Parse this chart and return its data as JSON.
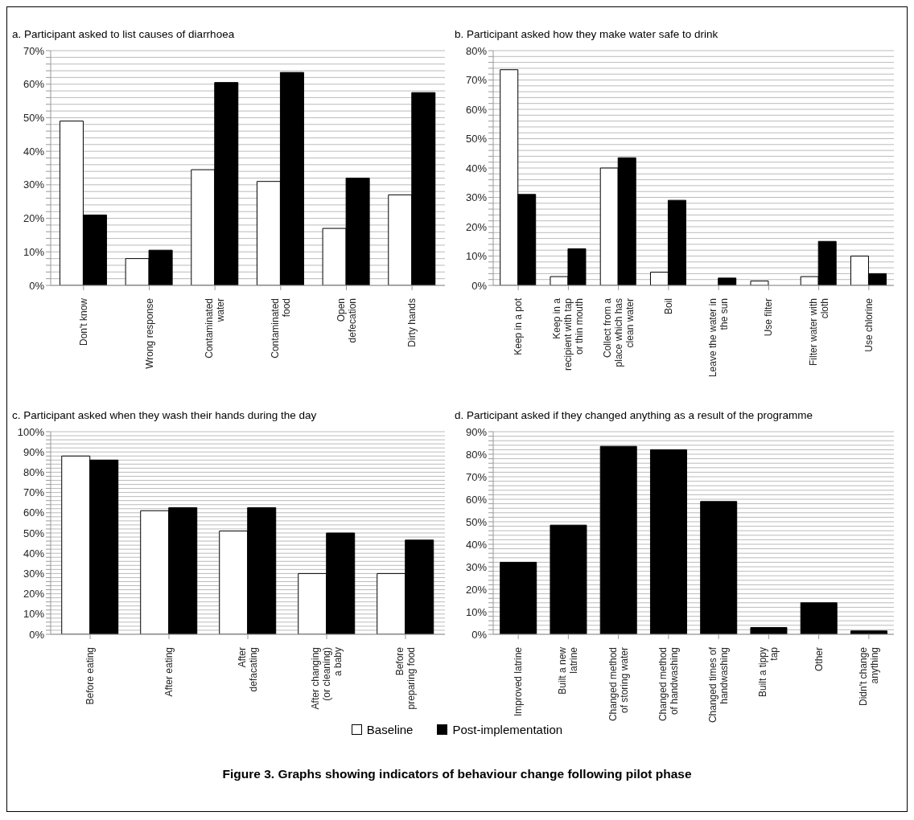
{
  "chart_data": [
    {
      "type": "bar",
      "title": "a. Participant asked to list causes of diarrhoea",
      "categories": [
        "Don't know",
        "Wrong response",
        "Contaminated water",
        "Contaminated food",
        "Open defecation",
        "Dirty hands"
      ],
      "series": [
        {
          "name": "Baseline",
          "color": "#ffffff",
          "values": [
            49,
            8,
            34.5,
            31,
            17,
            27
          ]
        },
        {
          "name": "Post-implementation",
          "color": "#000000",
          "values": [
            21,
            10.5,
            60.5,
            63.5,
            32,
            57.5
          ]
        }
      ],
      "ylim": [
        0,
        70
      ],
      "yticks": [
        {
          "value": 0,
          "label": "0%"
        },
        {
          "value": 2,
          "label": null
        },
        {
          "value": 4,
          "label": null
        },
        {
          "value": 6,
          "label": null
        },
        {
          "value": 8,
          "label": null
        },
        {
          "value": 10,
          "label": "10%"
        },
        {
          "value": 12,
          "label": null
        },
        {
          "value": 14,
          "label": null
        },
        {
          "value": 16,
          "label": null
        },
        {
          "value": 18,
          "label": null
        },
        {
          "value": 20,
          "label": "20%"
        },
        {
          "value": 22,
          "label": null
        },
        {
          "value": 24,
          "label": null
        },
        {
          "value": 26,
          "label": null
        },
        {
          "value": 28,
          "label": null
        },
        {
          "value": 30,
          "label": "30%"
        },
        {
          "value": 32,
          "label": null
        },
        {
          "value": 34,
          "label": null
        },
        {
          "value": 36,
          "label": null
        },
        {
          "value": 38,
          "label": null
        },
        {
          "value": 40,
          "label": "40%"
        },
        {
          "value": 42,
          "label": null
        },
        {
          "value": 44,
          "label": null
        },
        {
          "value": 46,
          "label": null
        },
        {
          "value": 48,
          "label": null
        },
        {
          "value": 50,
          "label": "50%"
        },
        {
          "value": 52,
          "label": null
        },
        {
          "value": 54,
          "label": null
        },
        {
          "value": 56,
          "label": null
        },
        {
          "value": 58,
          "label": null
        },
        {
          "value": 60,
          "label": "60%"
        },
        {
          "value": 62,
          "label": null
        },
        {
          "value": 64,
          "label": null
        },
        {
          "value": 66,
          "label": null
        },
        {
          "value": 68,
          "label": null
        },
        {
          "value": 70,
          "label": "70%"
        }
      ],
      "grid": "y",
      "legend": "bottom"
    },
    {
      "type": "bar",
      "title": "b. Participant asked how they make water safe to drink",
      "categories": [
        "Keep in a pot",
        "Keep in a recipient with tap or thin mouth",
        "Collect from a place which has clean water",
        "Boil",
        "Leave the water in the sun",
        "Use filter",
        "Filter water with cloth",
        "Use chlorine"
      ],
      "series": [
        {
          "color": "#ffffff",
          "values": [
            73.5,
            3,
            40,
            4.5,
            null,
            1.5,
            3,
            10
          ]
        },
        {
          "color": "#000000",
          "values": [
            31,
            12.5,
            43.5,
            29,
            2.5,
            null,
            15,
            4
          ]
        }
      ],
      "ylim": [
        0,
        80
      ],
      "yticks": [
        {
          "value": 0,
          "label": "0%"
        },
        {
          "value": 2,
          "label": null
        },
        {
          "value": 4,
          "label": null
        },
        {
          "value": 6,
          "label": null
        },
        {
          "value": 8,
          "label": null
        },
        {
          "value": 10,
          "label": "10%"
        },
        {
          "value": 12,
          "label": null
        },
        {
          "value": 14,
          "label": null
        },
        {
          "value": 16,
          "label": null
        },
        {
          "value": 18,
          "label": null
        },
        {
          "value": 20,
          "label": "20%"
        },
        {
          "value": 22,
          "label": null
        },
        {
          "value": 24,
          "label": null
        },
        {
          "value": 26,
          "label": null
        },
        {
          "value": 28,
          "label": null
        },
        {
          "value": 30,
          "label": "30%"
        },
        {
          "value": 32,
          "label": null
        },
        {
          "value": 34,
          "label": null
        },
        {
          "value": 36,
          "label": null
        },
        {
          "value": 38,
          "label": null
        },
        {
          "value": 40,
          "label": "40%"
        },
        {
          "value": 42,
          "label": null
        },
        {
          "value": 44,
          "label": null
        },
        {
          "value": 46,
          "label": null
        },
        {
          "value": 48,
          "label": null
        },
        {
          "value": 50,
          "label": "50%"
        },
        {
          "value": 52,
          "label": null
        },
        {
          "value": 54,
          "label": null
        },
        {
          "value": 56,
          "label": null
        },
        {
          "value": 58,
          "label": null
        },
        {
          "value": 60,
          "label": "60%"
        },
        {
          "value": 62,
          "label": null
        },
        {
          "value": 64,
          "label": null
        },
        {
          "value": 66,
          "label": null
        },
        {
          "value": 68,
          "label": null
        },
        {
          "value": 70,
          "label": "70%"
        },
        {
          "value": 72,
          "label": null
        },
        {
          "value": 74,
          "label": null
        },
        {
          "value": 76,
          "label": null
        },
        {
          "value": 78,
          "label": null
        },
        {
          "value": 80,
          "label": "80%"
        }
      ],
      "grid": "y"
    },
    {
      "type": "bar",
      "title": "c. Participant asked when they wash their hands during the day",
      "categories": [
        "Before eating",
        "After eating",
        "After defacating",
        "After changing (or cleaning) a baby",
        "Before preparing food"
      ],
      "series": [
        {
          "color": "#ffffff",
          "values": [
            88,
            61,
            51,
            30,
            30
          ]
        },
        {
          "color": "#000000",
          "values": [
            86,
            62.5,
            62.5,
            50,
            46.5
          ]
        }
      ],
      "ylim": [
        0,
        100
      ],
      "yticks": [
        {
          "value": 0,
          "label": "0%"
        },
        {
          "value": 2,
          "label": null
        },
        {
          "value": 4,
          "label": null
        },
        {
          "value": 6,
          "label": null
        },
        {
          "value": 8,
          "label": null
        },
        {
          "value": 10,
          "label": "10%"
        },
        {
          "value": 12,
          "label": null
        },
        {
          "value": 14,
          "label": null
        },
        {
          "value": 16,
          "label": null
        },
        {
          "value": 18,
          "label": null
        },
        {
          "value": 20,
          "label": "20%"
        },
        {
          "value": 22,
          "label": null
        },
        {
          "value": 24,
          "label": null
        },
        {
          "value": 26,
          "label": null
        },
        {
          "value": 28,
          "label": null
        },
        {
          "value": 30,
          "label": "30%"
        },
        {
          "value": 32,
          "label": null
        },
        {
          "value": 34,
          "label": null
        },
        {
          "value": 36,
          "label": null
        },
        {
          "value": 38,
          "label": null
        },
        {
          "value": 40,
          "label": "40%"
        },
        {
          "value": 42,
          "label": null
        },
        {
          "value": 44,
          "label": null
        },
        {
          "value": 46,
          "label": null
        },
        {
          "value": 48,
          "label": null
        },
        {
          "value": 50,
          "label": "50%"
        },
        {
          "value": 52,
          "label": null
        },
        {
          "value": 54,
          "label": null
        },
        {
          "value": 56,
          "label": null
        },
        {
          "value": 58,
          "label": null
        },
        {
          "value": 60,
          "label": "60%"
        },
        {
          "value": 62,
          "label": null
        },
        {
          "value": 64,
          "label": null
        },
        {
          "value": 66,
          "label": null
        },
        {
          "value": 68,
          "label": null
        },
        {
          "value": 70,
          "label": "70%"
        },
        {
          "value": 72,
          "label": null
        },
        {
          "value": 74,
          "label": null
        },
        {
          "value": 76,
          "label": null
        },
        {
          "value": 78,
          "label": null
        },
        {
          "value": 80,
          "label": "80%"
        },
        {
          "value": 82,
          "label": null
        },
        {
          "value": 84,
          "label": null
        },
        {
          "value": 86,
          "label": null
        },
        {
          "value": 88,
          "label": null
        },
        {
          "value": 90,
          "label": "90%"
        },
        {
          "value": 92,
          "label": null
        },
        {
          "value": 94,
          "label": null
        },
        {
          "value": 96,
          "label": null
        },
        {
          "value": 98,
          "label": null
        },
        {
          "value": 100,
          "label": "100%"
        }
      ],
      "grid": "y"
    },
    {
      "type": "bar",
      "title": "d. Participant asked if they changed anything as a result of the programme",
      "categories": [
        "Improved latrine",
        "Built a new latrine",
        "Changed method of storing water",
        "Changed method of handwashing",
        "Changed times of handwashing",
        "Built a tippy tap",
        "Other",
        "Didn't change anything"
      ],
      "series": [
        {
          "color": "#000000",
          "values": [
            32,
            48.5,
            83.5,
            82,
            59,
            3,
            14,
            1.5
          ]
        }
      ],
      "ylim": [
        0,
        90
      ],
      "yticks": [
        {
          "value": 0,
          "label": "0%"
        },
        {
          "value": 2,
          "label": null
        },
        {
          "value": 4,
          "label": null
        },
        {
          "value": 6,
          "label": null
        },
        {
          "value": 8,
          "label": null
        },
        {
          "value": 10,
          "label": "10%"
        },
        {
          "value": 12,
          "label": null
        },
        {
          "value": 14,
          "label": null
        },
        {
          "value": 16,
          "label": null
        },
        {
          "value": 18,
          "label": null
        },
        {
          "value": 20,
          "label": "20%"
        },
        {
          "value": 22,
          "label": null
        },
        {
          "value": 24,
          "label": null
        },
        {
          "value": 26,
          "label": null
        },
        {
          "value": 28,
          "label": null
        },
        {
          "value": 30,
          "label": "30%"
        },
        {
          "value": 32,
          "label": null
        },
        {
          "value": 34,
          "label": null
        },
        {
          "value": 36,
          "label": null
        },
        {
          "value": 38,
          "label": null
        },
        {
          "value": 40,
          "label": "40%"
        },
        {
          "value": 42,
          "label": null
        },
        {
          "value": 44,
          "label": null
        },
        {
          "value": 46,
          "label": null
        },
        {
          "value": 48,
          "label": null
        },
        {
          "value": 50,
          "label": "50%"
        },
        {
          "value": 52,
          "label": null
        },
        {
          "value": 54,
          "label": null
        },
        {
          "value": 56,
          "label": null
        },
        {
          "value": 58,
          "label": null
        },
        {
          "value": 60,
          "label": "60%"
        },
        {
          "value": 62,
          "label": null
        },
        {
          "value": 64,
          "label": null
        },
        {
          "value": 66,
          "label": null
        },
        {
          "value": 68,
          "label": null
        },
        {
          "value": 70,
          "label": "70%"
        },
        {
          "value": 72,
          "label": null
        },
        {
          "value": 74,
          "label": null
        },
        {
          "value": 76,
          "label": null
        },
        {
          "value": 78,
          "label": null
        },
        {
          "value": 80,
          "label": "80%"
        },
        {
          "value": 82,
          "label": null
        },
        {
          "value": 84,
          "label": null
        },
        {
          "value": 86,
          "label": null
        },
        {
          "value": 88,
          "label": null
        },
        {
          "value": 90,
          "label": "90%"
        }
      ],
      "grid": "y",
      "annotations": [
        "Figure 3. Graphs showing indicators of behaviour change following pilot phase"
      ]
    }
  ]
}
